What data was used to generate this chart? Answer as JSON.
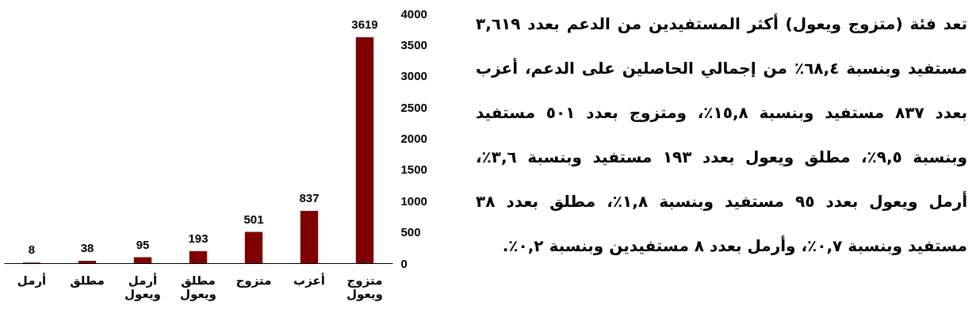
{
  "chart_data": {
    "type": "bar",
    "categories": [
      "أرمل",
      "مطلق",
      "أرمل ويعول",
      "مطلق ويعول",
      "متزوج",
      "أعزب",
      "متزوج ويعول"
    ],
    "values": [
      8,
      38,
      95,
      193,
      501,
      837,
      3619
    ],
    "color": "#7f0000",
    "ylim": [
      0,
      4000
    ],
    "yticks": [
      0,
      500,
      1000,
      1500,
      2000,
      2500,
      3000,
      3500,
      4000
    ],
    "data_labels": true,
    "grid": false,
    "annotations": [
      "تعد فئة (متزوج ويعول) أكثر المستفيدين من الدعم بعدد ٣,٦١٩ مستفيد وبنسبة ٦٨,٤٪ من إجمالي الحاصلين على الدعم، أعزب بعدد ٨٣٧ مستفيد وبنسبة ١٥,٨٪، ومتزوج بعدد ٥٠١ مستفيد وبنسبة ٩,٥٪، مطلق ويعول بعدد ١٩٣ مستفيد وبنسبة ٣,٦٪، أرمل ويعول بعدد ٩٥ مستفيد وبنسبة ١,٨٪، مطلق بعدد ٣٨ مستفيد وبنسبة ٠,٧٪، وأرمل بعدد ٨ مستفيدين وبنسبة ٠,٢٪."
    ]
  }
}
